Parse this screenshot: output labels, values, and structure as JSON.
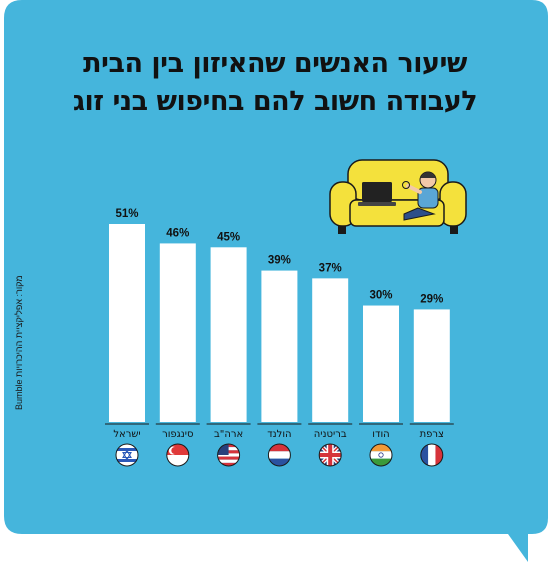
{
  "title_lines": [
    "שיעור האנשים שהאיזון בין הבית",
    "לעבודה חשוב להם בחיפוש בני זוג"
  ],
  "source_note": "מקור: אפליקציית ההיכרויות Bumble",
  "colors": {
    "background": "#45b5dc",
    "bar": "#ffffff",
    "sofa": "#f4e13c",
    "text": "#111111"
  },
  "chart_data": {
    "type": "bar",
    "categories": [
      "ישראל",
      "סינגפור",
      "ארה\"ב",
      "הולנד",
      "בריטניה",
      "הודו",
      "צרפת"
    ],
    "values": [
      51,
      46,
      45,
      39,
      37,
      30,
      29
    ],
    "value_labels": [
      "51%",
      "46%",
      "45%",
      "39%",
      "37%",
      "30%",
      "29%"
    ],
    "flags": [
      "israel-flag",
      "singapore-flag",
      "usa-flag",
      "netherlands-flag",
      "uk-flag",
      "india-flag",
      "france-flag"
    ],
    "title": "שיעור האנשים שהאיזון בין הבית לעבודה חשוב להם בחיפוש בני זוג",
    "xlabel": "",
    "ylabel": "",
    "ylim": [
      0,
      60
    ],
    "grid": false,
    "legend": "none"
  }
}
